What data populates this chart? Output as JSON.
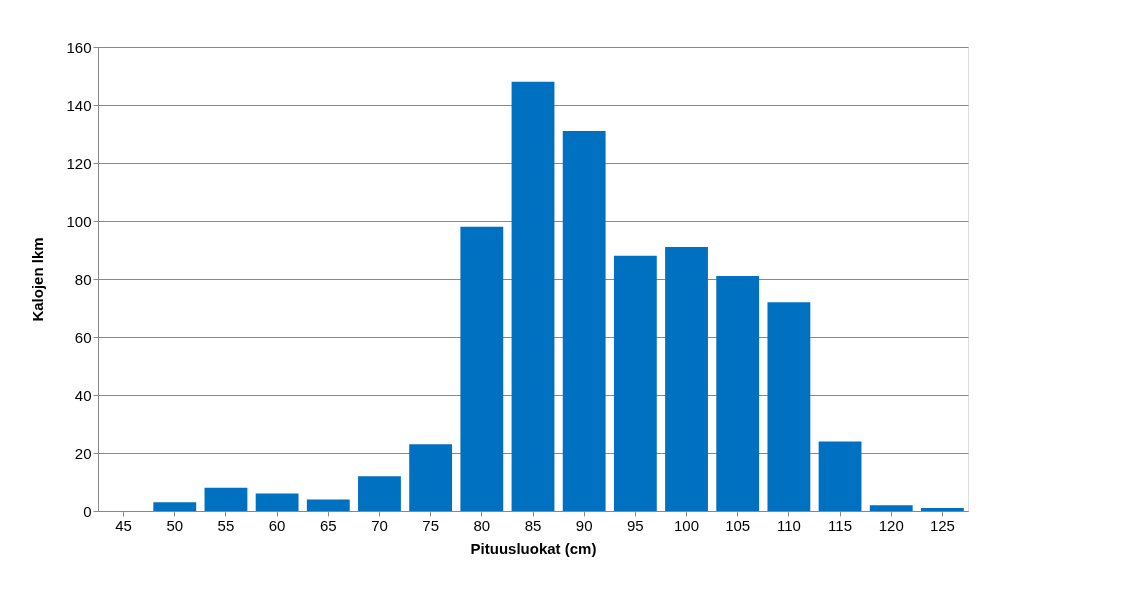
{
  "chart_data": {
    "type": "bar",
    "xlabel": "Pituusluokat (cm)",
    "ylabel": "Kalojen lkm",
    "categories": [
      "45",
      "50",
      "55",
      "60",
      "65",
      "70",
      "75",
      "80",
      "85",
      "90",
      "95",
      "100",
      "105",
      "110",
      "115",
      "120",
      "125"
    ],
    "values": [
      0,
      3,
      8,
      6,
      4,
      12,
      23,
      98,
      148,
      131,
      88,
      91,
      81,
      72,
      24,
      2,
      1
    ],
    "color": "#0070c0",
    "ylim": [
      0,
      160
    ],
    "yticks": [
      0,
      20,
      40,
      60,
      80,
      100,
      120,
      140,
      160
    ],
    "grid": "y"
  }
}
